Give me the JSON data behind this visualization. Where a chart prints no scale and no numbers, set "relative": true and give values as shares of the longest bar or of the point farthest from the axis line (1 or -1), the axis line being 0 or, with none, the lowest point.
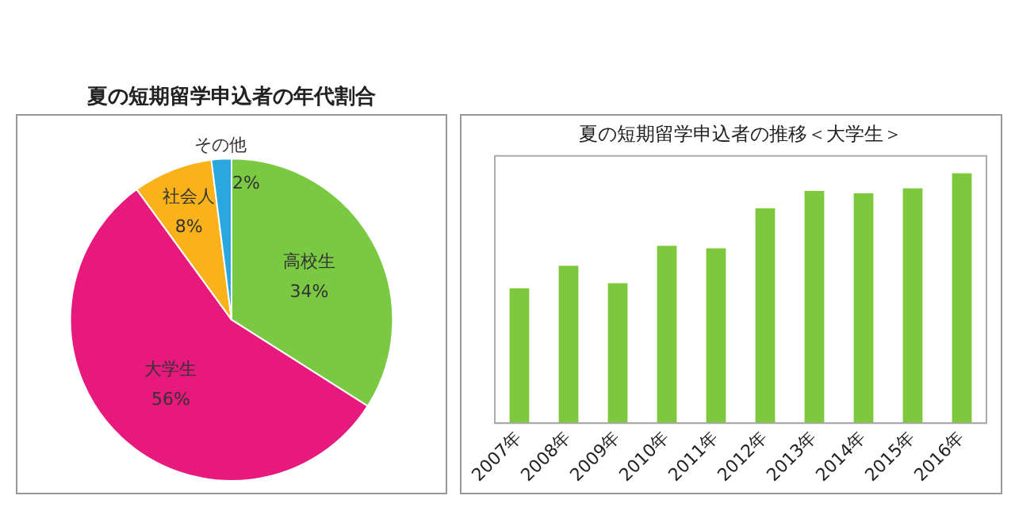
{
  "chart_data": [
    {
      "type": "pie",
      "title": "夏の短期留学申込者の年代割合",
      "categories": [
        "高校生",
        "大学生",
        "社会人",
        "その他"
      ],
      "values": [
        34,
        56,
        8,
        2
      ],
      "colors": [
        "#7ac943",
        "#e8197d",
        "#f9b21a",
        "#29a8e0"
      ],
      "value_labels": [
        "34%",
        "56%",
        "8%",
        "2%"
      ],
      "legend": false
    },
    {
      "type": "bar",
      "title": "夏の短期留学申込者の推移＜大学生＞",
      "categories": [
        "2007年",
        "2008年",
        "2009年",
        "2010年",
        "2011年",
        "2012年",
        "2013年",
        "2014年",
        "2015年",
        "2016年"
      ],
      "values": [
        0.54,
        0.63,
        0.56,
        0.71,
        0.7,
        0.86,
        0.93,
        0.92,
        0.94,
        1
      ],
      "color": "#7dc83c",
      "relative": true,
      "legend": false
    }
  ]
}
